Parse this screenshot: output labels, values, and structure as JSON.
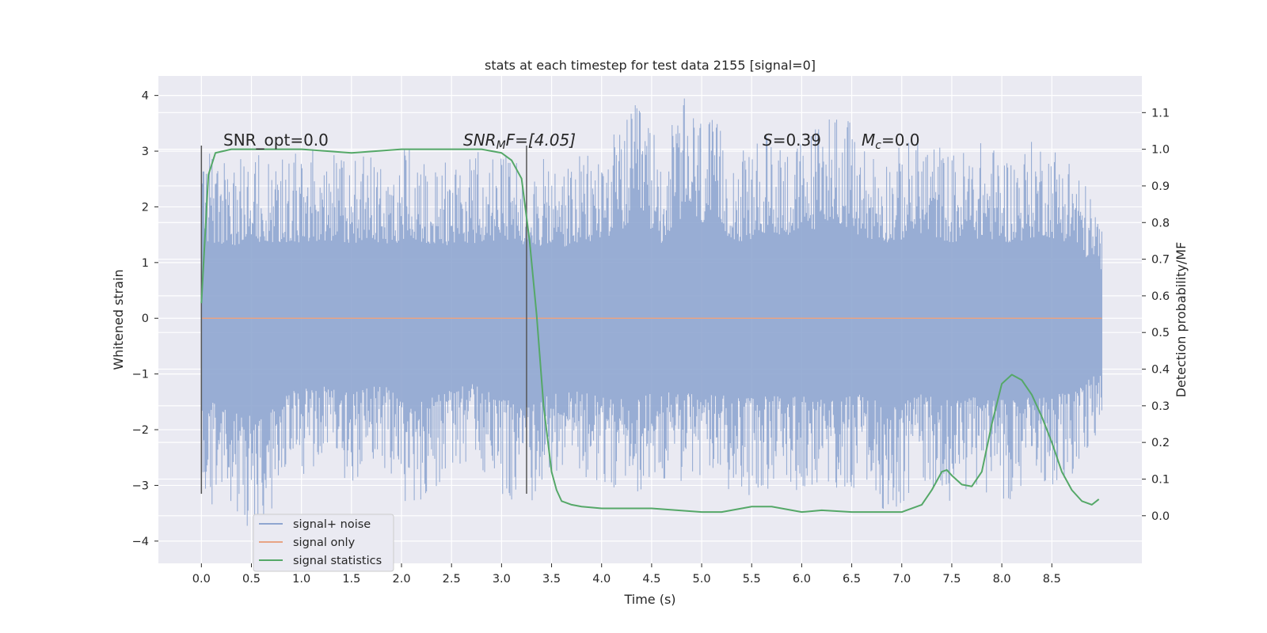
{
  "chart_data": {
    "type": "line",
    "title": "stats at each timestep for test data 2155 [signal=0]",
    "xlabel": "Time (s)",
    "ylabel_left": "Whitened strain",
    "ylabel_right": "Detection probability/MF",
    "xlim": [
      -0.43,
      9.4
    ],
    "ylim_left": [
      -4.4,
      4.35
    ],
    "ylim_right": [
      -0.13,
      1.2
    ],
    "x_ticks": [
      0.0,
      0.5,
      1.0,
      1.5,
      2.0,
      2.5,
      3.0,
      3.5,
      4.0,
      4.5,
      5.0,
      5.5,
      6.0,
      6.5,
      7.0,
      7.5,
      8.0,
      8.5
    ],
    "x_tick_labels": [
      "0.0",
      "0.5",
      "1.0",
      "1.5",
      "2.0",
      "2.5",
      "3.0",
      "3.5",
      "4.0",
      "4.5",
      "5.0",
      "5.5",
      "6.0",
      "6.5",
      "7.0",
      "7.5",
      "8.0",
      "8.5"
    ],
    "y_left_ticks": [
      -4,
      -3,
      -2,
      -1,
      0,
      1,
      2,
      3,
      4
    ],
    "y_left_tick_labels": [
      "−4",
      "−3",
      "−2",
      "−1",
      "0",
      "1",
      "2",
      "3",
      "4"
    ],
    "y_right_ticks": [
      0.0,
      0.1,
      0.2,
      0.3,
      0.4,
      0.5,
      0.6,
      0.7,
      0.8,
      0.9,
      1.0,
      1.1
    ],
    "y_right_tick_labels": [
      "0.0",
      "0.1",
      "0.2",
      "0.3",
      "0.4",
      "0.5",
      "0.6",
      "0.7",
      "0.8",
      "0.9",
      "1.0",
      "1.1"
    ],
    "grid": true,
    "legend_position": "lower-left",
    "annotations": {
      "snr_opt": "SNR_opt=0.0",
      "snr_mf_prefix": "SNR",
      "snr_mf_sub": "M",
      "snr_mf_suffix": "F=[4.05]",
      "s_prefix": "S",
      "s_suffix": "=0.39",
      "mc_prefix": "M",
      "mc_sub": "c",
      "mc_suffix": "=0.0"
    },
    "vertical_markers": [
      0.0,
      3.25
    ],
    "series": [
      {
        "name": "signal+ noise",
        "color": "#8fa6d0",
        "axis": "left",
        "t_start": 0.0,
        "t_end": 9.0,
        "envelope": [
          [
            0.0,
            -3.2,
            3.1
          ],
          [
            0.3,
            -3.6,
            2.9
          ],
          [
            0.6,
            -4.0,
            3.0
          ],
          [
            0.9,
            -2.9,
            3.0
          ],
          [
            1.2,
            -2.7,
            3.1
          ],
          [
            1.5,
            -3.0,
            3.0
          ],
          [
            1.8,
            -2.6,
            2.9
          ],
          [
            2.1,
            -3.5,
            3.1
          ],
          [
            2.4,
            -3.0,
            2.9
          ],
          [
            2.7,
            -2.6,
            3.0
          ],
          [
            3.0,
            -3.2,
            3.0
          ],
          [
            3.3,
            -3.4,
            2.9
          ],
          [
            3.6,
            -2.8,
            2.8
          ],
          [
            3.9,
            -3.0,
            3.0
          ],
          [
            4.2,
            -3.2,
            3.5
          ],
          [
            4.4,
            -3.1,
            4.0
          ],
          [
            4.6,
            -2.9,
            3.0
          ],
          [
            4.8,
            -3.0,
            4.0
          ],
          [
            5.1,
            -3.0,
            3.6
          ],
          [
            5.4,
            -3.2,
            3.0
          ],
          [
            5.7,
            -3.1,
            3.4
          ],
          [
            6.0,
            -3.1,
            3.2
          ],
          [
            6.3,
            -3.3,
            4.0
          ],
          [
            6.6,
            -3.0,
            3.2
          ],
          [
            6.9,
            -3.6,
            3.0
          ],
          [
            7.2,
            -3.0,
            3.4
          ],
          [
            7.5,
            -3.3,
            3.0
          ],
          [
            7.8,
            -3.1,
            3.2
          ],
          [
            8.1,
            -3.3,
            3.0
          ],
          [
            8.4,
            -3.0,
            3.3
          ],
          [
            8.7,
            -3.0,
            3.0
          ],
          [
            9.0,
            -2.0,
            1.8
          ]
        ]
      },
      {
        "name": "signal only",
        "color": "#e8a484",
        "axis": "left",
        "t": [
          0.0,
          9.0
        ],
        "values": [
          0.0,
          0.0
        ]
      },
      {
        "name": "signal statistics",
        "color": "#55a868",
        "axis": "right",
        "t": [
          0.0,
          0.07,
          0.14,
          0.3,
          0.6,
          1.0,
          1.5,
          2.0,
          2.5,
          2.8,
          3.0,
          3.1,
          3.2,
          3.28,
          3.35,
          3.42,
          3.5,
          3.55,
          3.6,
          3.7,
          3.8,
          4.0,
          4.5,
          5.0,
          5.2,
          5.5,
          5.7,
          6.0,
          6.2,
          6.5,
          7.0,
          7.2,
          7.3,
          7.4,
          7.45,
          7.5,
          7.6,
          7.7,
          7.8,
          7.9,
          8.0,
          8.1,
          8.2,
          8.3,
          8.4,
          8.5,
          8.6,
          8.7,
          8.8,
          8.9,
          8.97
        ],
        "values": [
          0.58,
          0.93,
          0.99,
          1.0,
          1.0,
          1.0,
          0.99,
          1.0,
          1.0,
          1.0,
          0.99,
          0.97,
          0.92,
          0.75,
          0.55,
          0.3,
          0.12,
          0.07,
          0.04,
          0.03,
          0.025,
          0.02,
          0.02,
          0.01,
          0.01,
          0.025,
          0.025,
          0.01,
          0.015,
          0.01,
          0.01,
          0.03,
          0.07,
          0.12,
          0.125,
          0.11,
          0.085,
          0.08,
          0.12,
          0.25,
          0.36,
          0.385,
          0.37,
          0.33,
          0.27,
          0.2,
          0.12,
          0.07,
          0.04,
          0.03,
          0.045
        ]
      }
    ]
  }
}
